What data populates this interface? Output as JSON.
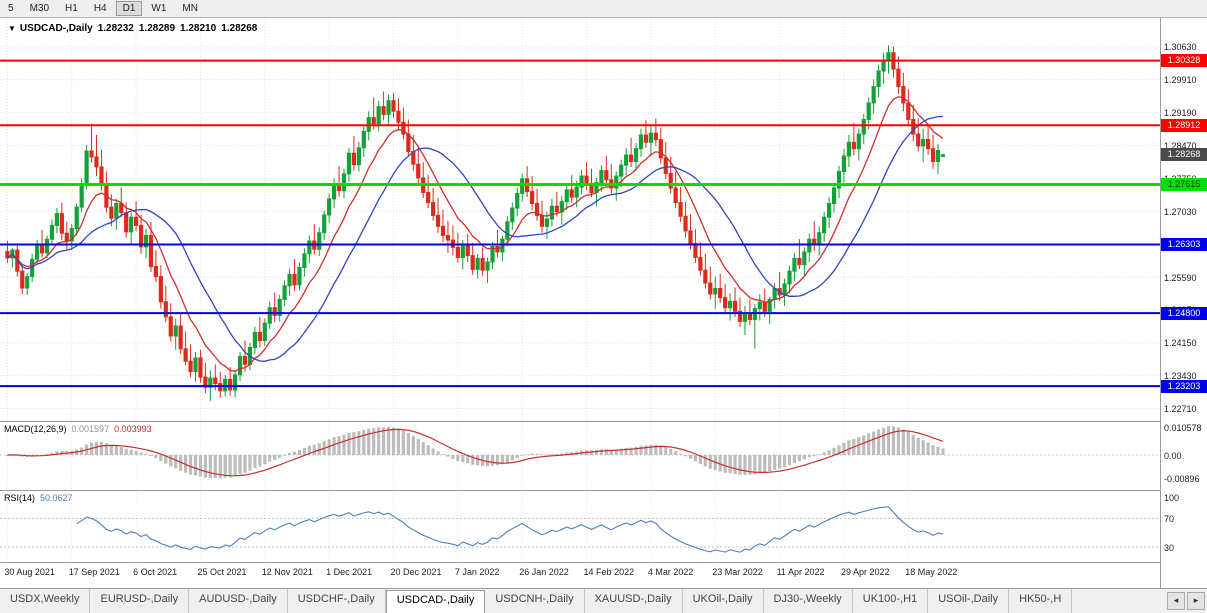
{
  "toolbar": {
    "timeframes": [
      "5",
      "M30",
      "H1",
      "H4",
      "D1",
      "W1",
      "MN"
    ],
    "active": "D1"
  },
  "chart_data": {
    "type": "candlestick",
    "title_marker": "▼",
    "symbol_label": "USDCAD-,Daily",
    "ohlc_display": {
      "o": "1.28232",
      "h": "1.28289",
      "l": "1.28210",
      "c": "1.28268"
    },
    "price_axis": {
      "ticks": [
        "1.30630",
        "1.29910",
        "1.29190",
        "1.28470",
        "1.27750",
        "1.27030",
        "1.26310",
        "1.25590",
        "1.24870",
        "1.24150",
        "1.23430",
        "1.22710"
      ]
    },
    "horizontal_lines": [
      {
        "value": 1.30328,
        "label": "1.30328",
        "line_color": "#fe0000",
        "line_width": 2,
        "badge_bg": "#fe0000",
        "badge_fg": "#ffffff"
      },
      {
        "value": 1.28912,
        "label": "1.28912",
        "line_color": "#fe0000",
        "line_width": 2,
        "badge_bg": "#fe0000",
        "badge_fg": "#ffffff"
      },
      {
        "value": 1.27615,
        "label": "1.27615",
        "line_color": "#00de00",
        "line_width": 3,
        "badge_bg": "#00de00",
        "badge_fg": "#003c00"
      },
      {
        "value": 1.26303,
        "label": "1.26303",
        "line_color": "#0000e8",
        "line_width": 2,
        "badge_bg": "#0000e8",
        "badge_fg": "#ffffff"
      },
      {
        "value": 1.248,
        "label": "1.24800",
        "line_color": "#0000e8",
        "line_width": 2,
        "badge_bg": "#0000e8",
        "badge_fg": "#ffffff"
      },
      {
        "value": 1.23203,
        "label": "1.23203",
        "line_color": "#0000e8",
        "line_width": 2,
        "badge_bg": "#0000e8",
        "badge_fg": "#ffffff"
      }
    ],
    "current_price": {
      "value": 1.28268,
      "label": "1.28268",
      "badge_bg": "#4a4a4a",
      "badge_fg": "#ffffff"
    },
    "candle_colors": {
      "up": "#16a03a",
      "down": "#dc2a1c"
    },
    "moving_averages": [
      {
        "type": "EMA",
        "period": 10,
        "color": "#d02f2f"
      },
      {
        "type": "SMA",
        "period": 20,
        "color": "#3346bf"
      }
    ],
    "dates": [
      {
        "i": 0,
        "label": "30 Aug 2021"
      },
      {
        "i": 13,
        "label": "17 Sep 2021"
      },
      {
        "i": 26,
        "label": "6 Oct 2021"
      },
      {
        "i": 39,
        "label": "25 Oct 2021"
      },
      {
        "i": 52,
        "label": "12 Nov 2021"
      },
      {
        "i": 65,
        "label": "1 Dec 2021"
      },
      {
        "i": 78,
        "label": "20 Dec 2021"
      },
      {
        "i": 91,
        "label": "7 Jan 2022"
      },
      {
        "i": 104,
        "label": "26 Jan 2022"
      },
      {
        "i": 117,
        "label": "14 Feb 2022"
      },
      {
        "i": 130,
        "label": "4 Mar 2022"
      },
      {
        "i": 143,
        "label": "23 Mar 2022"
      },
      {
        "i": 156,
        "label": "11 Apr 2022"
      },
      {
        "i": 169,
        "label": "29 Apr 2022"
      },
      {
        "i": 182,
        "label": "18 May 2022"
      }
    ],
    "indicators": {
      "macd": {
        "label": "MACD(12,26,9)",
        "value_main": "0.001597",
        "value_signal": "0.003993",
        "axis_labels": [
          "0.010578",
          "0.00",
          "-0.00896"
        ],
        "hist_color": "#bdbdbd",
        "signal_color": "#c62f2f"
      },
      "rsi": {
        "label": "RSI(14)",
        "value": "50.0627",
        "axis_labels": [
          "100",
          "70",
          "30"
        ],
        "levels": [
          70,
          30
        ],
        "line_color": "#4f81bd"
      }
    },
    "candles": [
      [
        1.2615,
        1.2638,
        1.259,
        1.2601
      ],
      [
        1.2601,
        1.2622,
        1.258,
        1.2618
      ],
      [
        1.2618,
        1.2633,
        1.256,
        1.2572
      ],
      [
        1.2572,
        1.2588,
        1.2522,
        1.2535
      ],
      [
        1.2535,
        1.2568,
        1.252,
        1.256
      ],
      [
        1.256,
        1.261,
        1.2548,
        1.2598
      ],
      [
        1.2598,
        1.264,
        1.2585,
        1.263
      ],
      [
        1.263,
        1.2662,
        1.2602,
        1.2612
      ],
      [
        1.2612,
        1.265,
        1.26,
        1.2642
      ],
      [
        1.2642,
        1.2685,
        1.263,
        1.2672
      ],
      [
        1.2672,
        1.271,
        1.2655,
        1.2698
      ],
      [
        1.2698,
        1.2722,
        1.264,
        1.2655
      ],
      [
        1.2655,
        1.268,
        1.262,
        1.2638
      ],
      [
        1.2638,
        1.2675,
        1.2618,
        1.2665
      ],
      [
        1.2665,
        1.272,
        1.265,
        1.2712
      ],
      [
        1.2712,
        1.2775,
        1.27,
        1.2762
      ],
      [
        1.2762,
        1.2848,
        1.275,
        1.2835
      ],
      [
        1.2835,
        1.2895,
        1.281,
        1.2822
      ],
      [
        1.2822,
        1.287,
        1.278,
        1.28
      ],
      [
        1.28,
        1.2838,
        1.2748,
        1.2762
      ],
      [
        1.2762,
        1.279,
        1.27,
        1.2712
      ],
      [
        1.2712,
        1.274,
        1.267,
        1.2688
      ],
      [
        1.2688,
        1.273,
        1.2662,
        1.272
      ],
      [
        1.272,
        1.2755,
        1.269,
        1.27
      ],
      [
        1.27,
        1.2722,
        1.2645,
        1.2658
      ],
      [
        1.2658,
        1.27,
        1.263,
        1.269
      ],
      [
        1.269,
        1.2725,
        1.266,
        1.2672
      ],
      [
        1.2672,
        1.2695,
        1.261,
        1.2625
      ],
      [
        1.2625,
        1.2665,
        1.26,
        1.265
      ],
      [
        1.265,
        1.268,
        1.257,
        1.2582
      ],
      [
        1.2582,
        1.2618,
        1.2548,
        1.256
      ],
      [
        1.256,
        1.2585,
        1.249,
        1.2505
      ],
      [
        1.2505,
        1.254,
        1.246,
        1.2472
      ],
      [
        1.2472,
        1.2502,
        1.2418,
        1.243
      ],
      [
        1.243,
        1.2468,
        1.24,
        1.2452
      ],
      [
        1.2452,
        1.248,
        1.239,
        1.2402
      ],
      [
        1.2402,
        1.244,
        1.2365,
        1.2375
      ],
      [
        1.2375,
        1.2412,
        1.234,
        1.2352
      ],
      [
        1.2352,
        1.2395,
        1.233,
        1.2382
      ],
      [
        1.2382,
        1.24,
        1.2328,
        1.234
      ],
      [
        1.234,
        1.2372,
        1.2305,
        1.2318
      ],
      [
        1.2318,
        1.2355,
        1.2288,
        1.2338
      ],
      [
        1.2338,
        1.2368,
        1.2312,
        1.2326
      ],
      [
        1.2326,
        1.2352,
        1.2295,
        1.231
      ],
      [
        1.231,
        1.2345,
        1.2298,
        1.2335
      ],
      [
        1.2335,
        1.2362,
        1.23,
        1.2312
      ],
      [
        1.2312,
        1.2355,
        1.2296,
        1.2345
      ],
      [
        1.2345,
        1.2395,
        1.2332,
        1.2385
      ],
      [
        1.2385,
        1.242,
        1.2352,
        1.2368
      ],
      [
        1.2368,
        1.2415,
        1.2355,
        1.2405
      ],
      [
        1.2405,
        1.245,
        1.239,
        1.2438
      ],
      [
        1.2438,
        1.2472,
        1.2405,
        1.242
      ],
      [
        1.242,
        1.2468,
        1.2408,
        1.2458
      ],
      [
        1.2458,
        1.2505,
        1.2445,
        1.2492
      ],
      [
        1.2492,
        1.2525,
        1.246,
        1.2475
      ],
      [
        1.2475,
        1.252,
        1.2462,
        1.251
      ],
      [
        1.251,
        1.2552,
        1.2495,
        1.254
      ],
      [
        1.254,
        1.2578,
        1.2518,
        1.2565
      ],
      [
        1.2565,
        1.2598,
        1.2528,
        1.2542
      ],
      [
        1.2542,
        1.259,
        1.253,
        1.258
      ],
      [
        1.258,
        1.2622,
        1.256,
        1.261
      ],
      [
        1.261,
        1.265,
        1.259,
        1.2638
      ],
      [
        1.2638,
        1.2675,
        1.2608,
        1.262
      ],
      [
        1.262,
        1.2668,
        1.2605,
        1.2656
      ],
      [
        1.2656,
        1.2705,
        1.264,
        1.2695
      ],
      [
        1.2695,
        1.2742,
        1.2678,
        1.273
      ],
      [
        1.273,
        1.2775,
        1.271,
        1.2762
      ],
      [
        1.2762,
        1.2802,
        1.2735,
        1.2748
      ],
      [
        1.2748,
        1.2796,
        1.2732,
        1.2785
      ],
      [
        1.2785,
        1.2842,
        1.2768,
        1.283
      ],
      [
        1.283,
        1.2868,
        1.2792,
        1.2805
      ],
      [
        1.2805,
        1.2855,
        1.279,
        1.2842
      ],
      [
        1.2842,
        1.2892,
        1.2822,
        1.2878
      ],
      [
        1.2878,
        1.2922,
        1.2858,
        1.2908
      ],
      [
        1.2908,
        1.2952,
        1.2882,
        1.2895
      ],
      [
        1.2895,
        1.2945,
        1.2878,
        1.2932
      ],
      [
        1.2932,
        1.2965,
        1.2902,
        1.2915
      ],
      [
        1.2915,
        1.2958,
        1.289,
        1.2945
      ],
      [
        1.2945,
        1.2962,
        1.2908,
        1.2922
      ],
      [
        1.2922,
        1.295,
        1.2882,
        1.2898
      ],
      [
        1.2898,
        1.293,
        1.286,
        1.2872
      ],
      [
        1.2872,
        1.2904,
        1.2822,
        1.2834
      ],
      [
        1.2834,
        1.287,
        1.2792,
        1.2806
      ],
      [
        1.2806,
        1.2842,
        1.2764,
        1.2776
      ],
      [
        1.2776,
        1.281,
        1.2732,
        1.2744
      ],
      [
        1.2744,
        1.2782,
        1.271,
        1.2722
      ],
      [
        1.2722,
        1.2754,
        1.2682,
        1.2694
      ],
      [
        1.2694,
        1.2732,
        1.2656,
        1.267
      ],
      [
        1.267,
        1.2706,
        1.2636,
        1.265
      ],
      [
        1.265,
        1.2682,
        1.2612,
        1.264
      ],
      [
        1.264,
        1.2672,
        1.2606,
        1.2624
      ],
      [
        1.2624,
        1.2656,
        1.259,
        1.2602
      ],
      [
        1.2602,
        1.264,
        1.2576,
        1.263
      ],
      [
        1.263,
        1.2654,
        1.2592,
        1.2606
      ],
      [
        1.2606,
        1.2634,
        1.2564,
        1.2576
      ],
      [
        1.2576,
        1.261,
        1.2556,
        1.26
      ],
      [
        1.26,
        1.2624,
        1.2562,
        1.2574
      ],
      [
        1.2574,
        1.2602,
        1.2546,
        1.2592
      ],
      [
        1.2592,
        1.2636,
        1.2576,
        1.2626
      ],
      [
        1.2626,
        1.2662,
        1.2602,
        1.2614
      ],
      [
        1.2614,
        1.265,
        1.2594,
        1.2642
      ],
      [
        1.2642,
        1.2692,
        1.2626,
        1.268
      ],
      [
        1.268,
        1.2722,
        1.2662,
        1.271
      ],
      [
        1.271,
        1.2754,
        1.2692,
        1.2742
      ],
      [
        1.2742,
        1.2786,
        1.2724,
        1.2774
      ],
      [
        1.2774,
        1.2802,
        1.2734,
        1.2746
      ],
      [
        1.2746,
        1.278,
        1.2706,
        1.272
      ],
      [
        1.272,
        1.2752,
        1.2682,
        1.2694
      ],
      [
        1.2694,
        1.2726,
        1.2656,
        1.267
      ],
      [
        1.267,
        1.2702,
        1.2642,
        1.2686
      ],
      [
        1.2686,
        1.273,
        1.267,
        1.2714
      ],
      [
        1.2714,
        1.2746,
        1.2692,
        1.2702
      ],
      [
        1.2702,
        1.2736,
        1.2674,
        1.2724
      ],
      [
        1.2724,
        1.2764,
        1.2706,
        1.275
      ],
      [
        1.275,
        1.2782,
        1.2722,
        1.2734
      ],
      [
        1.2734,
        1.277,
        1.2712,
        1.2756
      ],
      [
        1.2756,
        1.2794,
        1.274,
        1.278
      ],
      [
        1.278,
        1.281,
        1.275,
        1.2762
      ],
      [
        1.2762,
        1.2796,
        1.2734,
        1.2744
      ],
      [
        1.2744,
        1.2776,
        1.2714,
        1.2766
      ],
      [
        1.2766,
        1.2804,
        1.2746,
        1.2792
      ],
      [
        1.2792,
        1.2824,
        1.276,
        1.2772
      ],
      [
        1.2772,
        1.2806,
        1.2742,
        1.2754
      ],
      [
        1.2754,
        1.279,
        1.2726,
        1.278
      ],
      [
        1.278,
        1.2816,
        1.2756,
        1.2804
      ],
      [
        1.2804,
        1.2842,
        1.2782,
        1.2826
      ],
      [
        1.2826,
        1.2864,
        1.28,
        1.2812
      ],
      [
        1.2812,
        1.2852,
        1.2792,
        1.284
      ],
      [
        1.284,
        1.2884,
        1.2822,
        1.287
      ],
      [
        1.287,
        1.2902,
        1.2842,
        1.2854
      ],
      [
        1.2854,
        1.2892,
        1.2824,
        1.2874
      ],
      [
        1.2874,
        1.2906,
        1.2846,
        1.286
      ],
      [
        1.286,
        1.2886,
        1.2806,
        1.282
      ],
      [
        1.282,
        1.2854,
        1.2774,
        1.2786
      ],
      [
        1.2786,
        1.2822,
        1.2742,
        1.2754
      ],
      [
        1.2754,
        1.279,
        1.271,
        1.2722
      ],
      [
        1.2722,
        1.2756,
        1.268,
        1.2692
      ],
      [
        1.2692,
        1.2724,
        1.2646,
        1.266
      ],
      [
        1.266,
        1.2696,
        1.262,
        1.2632
      ],
      [
        1.2632,
        1.2664,
        1.259,
        1.2602
      ],
      [
        1.2602,
        1.2636,
        1.2562,
        1.2574
      ],
      [
        1.2574,
        1.261,
        1.2534,
        1.2546
      ],
      [
        1.2546,
        1.2582,
        1.251,
        1.2522
      ],
      [
        1.2522,
        1.256,
        1.249,
        1.2534
      ],
      [
        1.2534,
        1.2566,
        1.2502,
        1.2514
      ],
      [
        1.2514,
        1.2544,
        1.248,
        1.2492
      ],
      [
        1.2492,
        1.2524,
        1.2464,
        1.2506
      ],
      [
        1.2506,
        1.2536,
        1.2472,
        1.2484
      ],
      [
        1.2484,
        1.2514,
        1.245,
        1.2462
      ],
      [
        1.2462,
        1.2496,
        1.2432,
        1.248
      ],
      [
        1.248,
        1.251,
        1.2454,
        1.2466
      ],
      [
        1.2466,
        1.25,
        1.2402,
        1.249
      ],
      [
        1.249,
        1.2522,
        1.2464,
        1.2504
      ],
      [
        1.2504,
        1.2534,
        1.2472,
        1.2484
      ],
      [
        1.2484,
        1.2516,
        1.2456,
        1.251
      ],
      [
        1.251,
        1.2546,
        1.249,
        1.2534
      ],
      [
        1.2534,
        1.257,
        1.2506,
        1.252
      ],
      [
        1.252,
        1.2556,
        1.2496,
        1.2544
      ],
      [
        1.2544,
        1.2584,
        1.2524,
        1.2572
      ],
      [
        1.2572,
        1.2612,
        1.255,
        1.26
      ],
      [
        1.26,
        1.2642,
        1.2576,
        1.2586
      ],
      [
        1.2586,
        1.2624,
        1.2562,
        1.2614
      ],
      [
        1.2614,
        1.2654,
        1.2592,
        1.2642
      ],
      [
        1.2642,
        1.2682,
        1.2616,
        1.263
      ],
      [
        1.263,
        1.267,
        1.2606,
        1.2656
      ],
      [
        1.2656,
        1.2702,
        1.2636,
        1.269
      ],
      [
        1.269,
        1.2734,
        1.2666,
        1.272
      ],
      [
        1.272,
        1.2766,
        1.27,
        1.2754
      ],
      [
        1.2754,
        1.2802,
        1.2732,
        1.279
      ],
      [
        1.279,
        1.284,
        1.2766,
        1.2824
      ],
      [
        1.2824,
        1.287,
        1.28,
        1.2854
      ],
      [
        1.2854,
        1.2896,
        1.2826,
        1.284
      ],
      [
        1.284,
        1.2884,
        1.2814,
        1.2872
      ],
      [
        1.2872,
        1.2916,
        1.285,
        1.2904
      ],
      [
        1.2904,
        1.2952,
        1.2882,
        1.294
      ],
      [
        1.294,
        1.2992,
        1.2916,
        1.2976
      ],
      [
        1.2976,
        1.3024,
        1.2952,
        1.301
      ],
      [
        1.301,
        1.305,
        1.2982,
        1.3034
      ],
      [
        1.3034,
        1.3066,
        1.3004,
        1.305
      ],
      [
        1.305,
        1.3064,
        1.2996,
        1.3014
      ],
      [
        1.3014,
        1.3042,
        1.296,
        1.2976
      ],
      [
        1.2976,
        1.3006,
        1.2922,
        1.294
      ],
      [
        1.294,
        1.297,
        1.289,
        1.2904
      ],
      [
        1.2904,
        1.2936,
        1.2856,
        1.2872
      ],
      [
        1.2872,
        1.2906,
        1.2834,
        1.2846
      ],
      [
        1.2846,
        1.2884,
        1.281,
        1.286
      ],
      [
        1.286,
        1.2892,
        1.2826,
        1.284
      ],
      [
        1.284,
        1.287,
        1.2796,
        1.2812
      ],
      [
        1.2812,
        1.285,
        1.2784,
        1.2836
      ],
      [
        1.28232,
        1.28289,
        1.2821,
        1.28268
      ]
    ]
  },
  "tabs": {
    "items": [
      "USDX,Weekly",
      "EURUSD-,Daily",
      "AUDUSD-,Daily",
      "USDCHF-,Daily",
      "USDCAD-,Daily",
      "USDCNH-,Daily",
      "XAUUSD-,Daily",
      "UKOil-,Daily",
      "DJ30-,Weekly",
      "UK100-,H1",
      "USOil-,Daily",
      "HK50-,H"
    ],
    "active": "USDCAD-,Daily",
    "scroll_left_icon": "◂",
    "scroll_right_icon": "▸"
  }
}
